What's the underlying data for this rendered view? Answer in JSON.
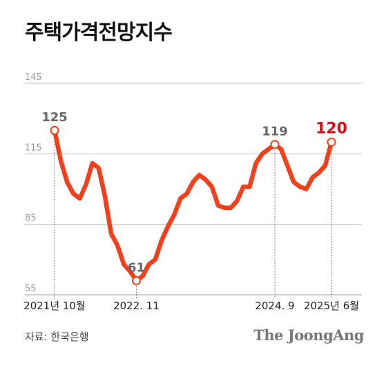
{
  "title": "주택가격전망지수",
  "source": "자료: 한국은행",
  "brand": "The JoongAng",
  "colors": {
    "line": "#f0401c",
    "highlight": "#d0121b",
    "label": "#666666",
    "grid": "#bbbbbb"
  },
  "chart_data": {
    "type": "line",
    "title": "주택가격전망지수",
    "ylim": [
      55,
      145
    ],
    "yticks": [
      145,
      115,
      85,
      55
    ],
    "grid": true,
    "x_labels": [
      "2021년 10월",
      "2022. 11",
      "2024. 9",
      "2025년 6월"
    ],
    "series": [
      {
        "values": [
          125,
          112,
          103,
          98,
          96,
          102,
          111,
          109,
          97,
          81,
          76,
          68,
          65,
          61,
          63,
          68,
          70,
          78,
          84,
          89,
          96,
          98,
          103,
          106,
          104,
          101,
          93,
          92,
          92,
          95,
          101,
          101,
          111,
          115,
          117,
          119,
          117,
          110,
          103,
          101,
          100,
          105,
          107,
          110,
          120
        ]
      }
    ],
    "annotations": [
      {
        "index": 0,
        "label": "125",
        "emphasis": false
      },
      {
        "index": 13,
        "label": "61",
        "emphasis": false
      },
      {
        "index": 35,
        "label": "119",
        "emphasis": false
      },
      {
        "index": 44,
        "label": "120",
        "emphasis": true
      }
    ]
  }
}
